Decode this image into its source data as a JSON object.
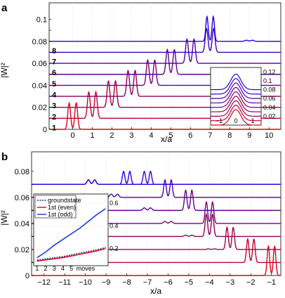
{
  "colors": {
    "curves_a": [
      "#e0001a",
      "#c3002e",
      "#a60043",
      "#8c005d",
      "#760075",
      "#62008c",
      "#4e00a6",
      "#3a00c3",
      "#2400e0"
    ],
    "curves_b": [
      "#e0001a",
      "#c3002e",
      "#a60043",
      "#8c005d",
      "#760075",
      "#62008c",
      "#4e00a6",
      "#3a00c3",
      "#2400e0"
    ],
    "groundstate": "#2a2a80",
    "even": "#e0001a",
    "odd": "#1030e0"
  },
  "chart_data": [
    {
      "panel": "a",
      "type": "line",
      "xlabel": "x/a",
      "ylabel": "|W|²",
      "xlim": [
        -1.2,
        10.6
      ],
      "ylim": [
        0,
        0.115
      ],
      "xticks": [
        0,
        1,
        2,
        3,
        4,
        5,
        6,
        7,
        8,
        9,
        10
      ],
      "yticks": [
        0,
        0.01,
        0.02,
        0.03,
        0.04,
        0.05,
        0.06,
        0.07,
        0.08,
        0.09,
        0.1
      ],
      "ytick_labels": [
        "0",
        "",
        "0.02",
        "",
        "0.04",
        "",
        "0.06",
        "",
        "0.08",
        "",
        "0.1"
      ],
      "move_labels": [
        "1",
        "2",
        "3",
        "4",
        "5",
        "6",
        "7",
        "8"
      ],
      "series": [
        {
          "offset": 0.0,
          "peak_x": 0,
          "peak_height": 0.048
        },
        {
          "offset": 0.01,
          "peak_x": 1,
          "peak_height": 0.048
        },
        {
          "offset": 0.02,
          "peak_x": 2,
          "peak_height": 0.048
        },
        {
          "offset": 0.03,
          "peak_x": 3,
          "peak_height": 0.047
        },
        {
          "offset": 0.04,
          "peak_x": 4,
          "peak_height": 0.046
        },
        {
          "offset": 0.05,
          "peak_x": 5,
          "peak_height": 0.045
        },
        {
          "offset": 0.06,
          "peak_x": 6,
          "peak_height": 0.044
        },
        {
          "offset": 0.07,
          "peak_x": 7,
          "peak_height": 0.043
        },
        {
          "offset": 0.08,
          "peak_x": 8,
          "peak_height": 0.002
        }
      ],
      "inset": {
        "xlim": [
          -1.5,
          1.5
        ],
        "ylim": [
          0,
          0.13
        ],
        "xticks": [
          -1,
          0,
          1
        ],
        "yticks": [
          0.02,
          0.04,
          0.06,
          0.08,
          0.1,
          0.12
        ],
        "ytick_labels": [
          "0.02",
          "0.04",
          "0.06",
          "0.08",
          "0.1",
          "0.12"
        ],
        "offsets": [
          0.0,
          0.01,
          0.02,
          0.03,
          0.04,
          0.05,
          0.06,
          0.07,
          0.08
        ],
        "peak_height": 0.035
      }
    },
    {
      "panel": "b",
      "type": "line",
      "xlabel": "x/a",
      "ylabel": "|W|²",
      "xlim": [
        -12.6,
        -0.55
      ],
      "ylim": [
        0,
        0.095
      ],
      "xticks": [
        -12,
        -11,
        -10,
        -9,
        -8,
        -7,
        -6,
        -5,
        -4,
        -3,
        -2,
        -1
      ],
      "yticks": [
        0,
        0.01,
        0.02,
        0.03,
        0.04,
        0.05,
        0.06,
        0.07,
        0.08
      ],
      "ytick_labels": [
        "0",
        "",
        "0.02",
        "",
        "0.04",
        "",
        "0.06",
        "",
        "0.08"
      ],
      "series": [
        {
          "offset": 0.0,
          "main_x": -1,
          "main_height": 0.045,
          "ghost_x": -1.9,
          "ghost_height": 0.0
        },
        {
          "offset": 0.01,
          "main_x": -2,
          "main_height": 0.036,
          "ghost_x": -2.9,
          "ghost_height": 0.0
        },
        {
          "offset": 0.02,
          "main_x": -3,
          "main_height": 0.034,
          "ghost_x": -3.9,
          "ghost_height": 0.001
        },
        {
          "offset": 0.03,
          "main_x": -4,
          "main_height": 0.034,
          "ghost_x": -5.0,
          "ghost_height": 0.002
        },
        {
          "offset": 0.04,
          "main_x": -4,
          "main_height": 0.033,
          "ghost_x": -6.0,
          "ghost_height": 0.003
        },
        {
          "offset": 0.05,
          "main_x": -5,
          "main_height": 0.031,
          "ghost_x": -7.0,
          "ghost_height": 0.004
        },
        {
          "offset": 0.06,
          "main_x": -6,
          "main_height": 0.027,
          "ghost_x": -8.6,
          "ghost_height": 0.005
        },
        {
          "offset": 0.07,
          "main_x": -7,
          "main_height": 0.02,
          "ghost_x": -9.7,
          "ghost_height": 0.007
        },
        {
          "offset": 0.07,
          "main_x": -8,
          "main_height": 0.02,
          "ghost_x": -9.7,
          "ghost_height": 0.007
        }
      ],
      "inset": {
        "xlabel": "moves",
        "xlim": [
          0.6,
          9.3
        ],
        "ylim": [
          0.05,
          0.68
        ],
        "xticks": [
          1,
          2,
          3,
          4,
          5
        ],
        "yticks": [
          0.2,
          0.4,
          0.6
        ],
        "ytick_labels": [
          "0.2",
          "0.4",
          "0.6"
        ],
        "legend": [
          "groundstate",
          "1st (even)",
          "1st (odd)"
        ],
        "legend_position": "top-left",
        "series": [
          {
            "name": "groundstate",
            "x": [
              1,
              2,
              3,
              4,
              5,
              6,
              7,
              8,
              9
            ],
            "values": [
              0.1,
              0.11,
              0.12,
              0.13,
              0.145,
              0.16,
              0.175,
              0.19,
              0.21
            ]
          },
          {
            "name": "1st (even)",
            "x": [
              1,
              2,
              3,
              4,
              5,
              6,
              7,
              8,
              9
            ],
            "values": [
              0.09,
              0.1,
              0.11,
              0.12,
              0.135,
              0.15,
              0.165,
              0.18,
              0.2
            ]
          },
          {
            "name": "1st (odd)",
            "x": [
              1,
              2,
              3,
              4,
              5,
              6,
              7,
              8,
              9
            ],
            "values": [
              0.12,
              0.17,
              0.23,
              0.28,
              0.33,
              0.38,
              0.44,
              0.5,
              0.55
            ]
          }
        ]
      }
    }
  ]
}
